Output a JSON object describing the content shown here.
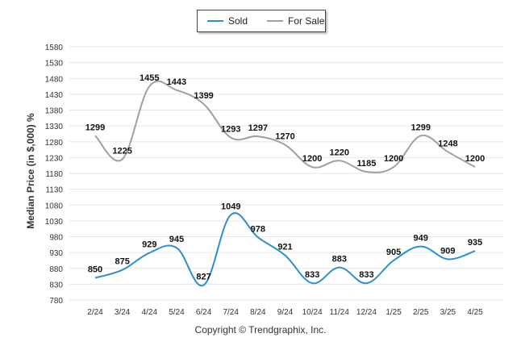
{
  "chart_data": {
    "type": "line",
    "categories": [
      "2/24",
      "3/24",
      "4/24",
      "5/24",
      "6/24",
      "7/24",
      "8/24",
      "9/24",
      "10/24",
      "11/24",
      "12/24",
      "1/25",
      "2/25",
      "3/25",
      "4/25"
    ],
    "series": [
      {
        "name": "Sold",
        "color": "#2b8fd0",
        "values": [
          850,
          875,
          929,
          945,
          827,
          1049,
          978,
          921,
          833,
          883,
          833,
          905,
          949,
          909,
          935
        ]
      },
      {
        "name": "For Sale",
        "color": "#a0a0a0",
        "values": [
          1299,
          1225,
          1455,
          1443,
          1399,
          1293,
          1297,
          1270,
          1200,
          1220,
          1185,
          1200,
          1299,
          1248,
          1200
        ]
      }
    ],
    "ylabel": "Median Price (in $,000) %",
    "xlabel": "",
    "ylim": [
      780,
      1580
    ],
    "yticks": [
      780,
      830,
      880,
      930,
      980,
      1030,
      1080,
      1130,
      1180,
      1230,
      1280,
      1330,
      1380,
      1430,
      1480,
      1530,
      1580
    ],
    "grid": true,
    "legend_position": "top-center"
  },
  "footer": "Copyright © Trendgraphix, Inc."
}
